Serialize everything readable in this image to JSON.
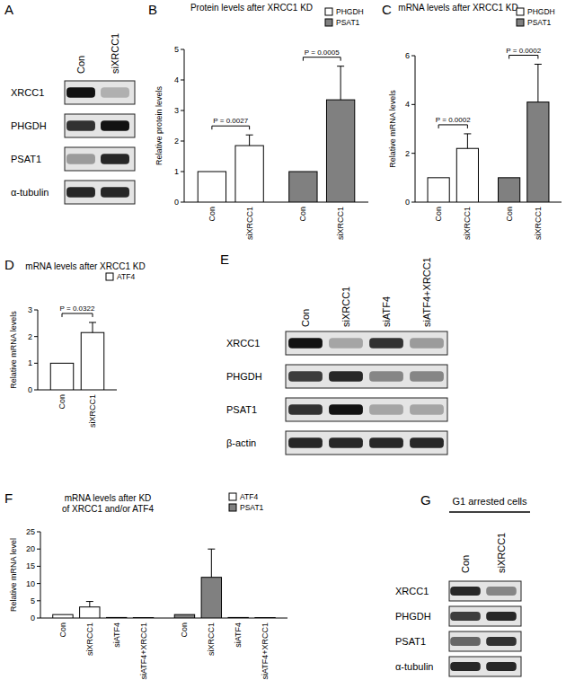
{
  "chart_data": [
    {
      "type": "bar",
      "panel": "B",
      "title": "Protein levels after XRCC1 KD",
      "y_label": "Relative protein levels",
      "categories": [
        "Con",
        "siXRCC1",
        "Con",
        "siXRCC1"
      ],
      "series": [
        {
          "name": "PHGDH",
          "color": "#ffffff",
          "values": [
            1,
            1.85,
            null,
            null
          ],
          "errors": [
            null,
            0.35,
            null,
            null
          ],
          "annotation": "P = 0.0027"
        },
        {
          "name": "PSAT1",
          "color": "#808080",
          "values": [
            null,
            null,
            1,
            3.35
          ],
          "errors": [
            null,
            null,
            null,
            1.1
          ],
          "annotation": "P = 0.0005"
        }
      ],
      "ylim": [
        0,
        5
      ],
      "yticks": [
        0,
        1,
        2,
        3,
        4,
        5
      ],
      "legend": "top-right"
    },
    {
      "type": "bar",
      "panel": "C",
      "title": "mRNA levels after XRCC1 KD",
      "y_label": "Relative mRNA levels",
      "categories": [
        "Con",
        "siXRCC1",
        "Con",
        "siXRCC1"
      ],
      "series": [
        {
          "name": "PHGDH",
          "color": "#ffffff",
          "values": [
            1,
            2.2,
            null,
            null
          ],
          "errors": [
            null,
            0.6,
            null,
            null
          ],
          "annotation": "P = 0.0002"
        },
        {
          "name": "PSAT1",
          "color": "#808080",
          "values": [
            null,
            null,
            1,
            4.1
          ],
          "errors": [
            null,
            null,
            null,
            1.55
          ],
          "annotation": "P = 0.0002"
        }
      ],
      "ylim": [
        0,
        6
      ],
      "yticks": [
        0,
        2,
        4,
        6
      ],
      "legend": "top-right"
    },
    {
      "type": "bar",
      "panel": "D",
      "title": "mRNA levels after XRCC1 KD",
      "y_label": "Relative mRNA levels",
      "categories": [
        "Con",
        "siXRCC1"
      ],
      "series": [
        {
          "name": "ATF4",
          "color": "#ffffff",
          "values": [
            1,
            2.15
          ],
          "errors": [
            null,
            0.38
          ],
          "annotation": "P = 0.0322"
        }
      ],
      "ylim": [
        0,
        3
      ],
      "yticks": [
        0,
        1,
        2,
        3
      ],
      "legend": "top-right"
    },
    {
      "type": "bar",
      "panel": "F",
      "title": "mRNA levels after KD of XRCC1 and/or ATF4",
      "y_label": "Relative mRNA level",
      "categories": [
        "Con",
        "siXRCC1",
        "siATF4",
        "siATF4+XRCC1",
        "Con",
        "siXRCC1",
        "siATF4",
        "siATF4+XRCC1"
      ],
      "series": [
        {
          "name": "ATF4",
          "color": "#ffffff",
          "values": [
            1,
            3.2,
            0.15,
            0.12,
            null,
            null,
            null,
            null
          ],
          "errors": [
            null,
            1.6,
            null,
            null,
            null,
            null,
            null,
            null
          ]
        },
        {
          "name": "PSAT1",
          "color": "#808080",
          "values": [
            null,
            null,
            null,
            null,
            1,
            11.8,
            0.15,
            0.12
          ],
          "errors": [
            null,
            null,
            null,
            null,
            null,
            8.2,
            null,
            null
          ]
        }
      ],
      "ylim": [
        0,
        25
      ],
      "yticks": [
        0,
        5,
        10,
        15,
        20,
        25
      ],
      "legend": "top-right"
    }
  ],
  "blots": [
    {
      "panel": "A",
      "lanes": [
        "Con",
        "siXRCC1"
      ],
      "rows": [
        {
          "label": "XRCC1",
          "bands": [
            1,
            0.25
          ]
        },
        {
          "label": "PHGDH",
          "bands": [
            0.85,
            1
          ]
        },
        {
          "label": "PSAT1",
          "bands": [
            0.35,
            0.9
          ]
        },
        {
          "label": "α-tubulin",
          "bands": [
            0.9,
            0.9
          ]
        }
      ]
    },
    {
      "panel": "E",
      "lanes": [
        "Con",
        "siXRCC1",
        "siATF4",
        "siATF4+XRCC1"
      ],
      "rows": [
        {
          "label": "XRCC1",
          "bands": [
            1,
            0.3,
            0.85,
            0.35
          ]
        },
        {
          "label": "PHGDH",
          "bands": [
            0.8,
            0.9,
            0.45,
            0.45
          ]
        },
        {
          "label": "PSAT1",
          "bands": [
            0.85,
            1,
            0.3,
            0.3
          ]
        },
        {
          "label": "β-actin",
          "bands": [
            0.9,
            0.9,
            0.9,
            0.9
          ]
        }
      ]
    },
    {
      "panel": "G",
      "title": "G1 arrested cells",
      "lanes": [
        "Con",
        "siXRCC1"
      ],
      "rows": [
        {
          "label": "XRCC1",
          "bands": [
            0.9,
            0.45
          ]
        },
        {
          "label": "PHGDH",
          "bands": [
            0.8,
            0.9
          ]
        },
        {
          "label": "PSAT1",
          "bands": [
            0.6,
            0.85
          ]
        },
        {
          "label": "α-tubulin",
          "bands": [
            0.9,
            0.9
          ]
        }
      ]
    }
  ]
}
